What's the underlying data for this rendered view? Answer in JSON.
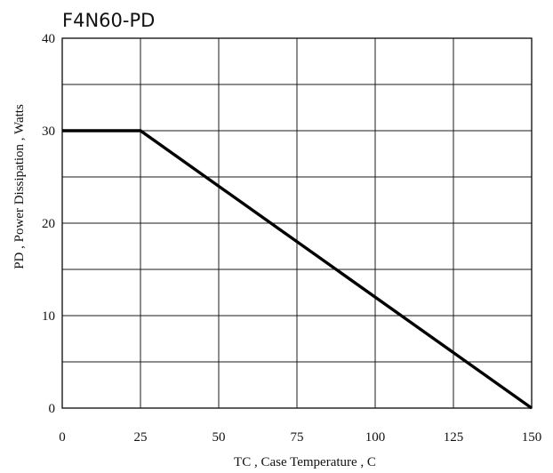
{
  "chart_data": {
    "type": "line",
    "title": "F4N60-PD",
    "xlabel": "TC , Case Temperature , C",
    "ylabel": "PD , Power Dissipation ,   Watts",
    "xlim": [
      0,
      150
    ],
    "ylim": [
      0,
      40
    ],
    "x_ticks": [
      0,
      25,
      50,
      75,
      100,
      125,
      150
    ],
    "y_ticks": [
      0,
      10,
      20,
      30,
      40
    ],
    "x_tick_labels": [
      "0",
      "25",
      "50",
      "75",
      "100",
      "125",
      "150"
    ],
    "y_tick_labels": [
      "0",
      "10",
      "20",
      "30",
      "40"
    ],
    "grid": true,
    "grid_y_step": 5,
    "grid_x_step": 25,
    "series": [
      {
        "x": [
          0,
          25,
          150
        ],
        "y": [
          30,
          30,
          0
        ],
        "color": "#000000"
      }
    ]
  }
}
